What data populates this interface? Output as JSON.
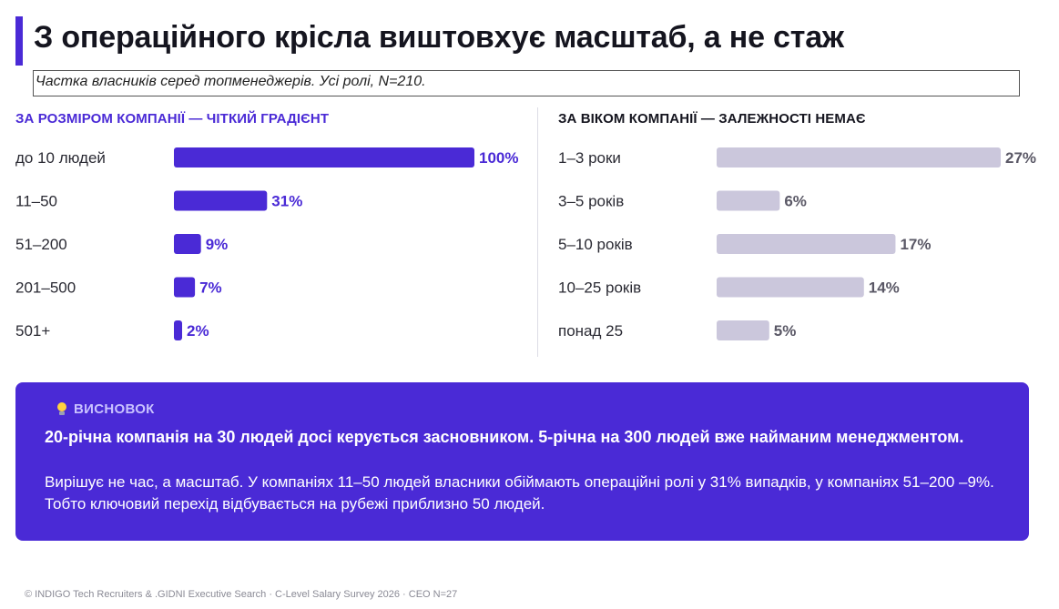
{
  "title": "З операційного крісла виштовхує масштаб, а не стаж",
  "subtitle": "Частка власників серед топменеджерів. Усі ролі, N=210.",
  "colors": {
    "accent": "#4a2ad6",
    "muted_bar": "#cbc7dc",
    "muted_value": "#5a5866"
  },
  "chart_data": [
    {
      "type": "bar",
      "orientation": "horizontal",
      "title": "ЗА РОЗМІРОМ КОМПАНІЇ — ЧІТКИЙ ГРАДІЄНТ",
      "categories": [
        "до 10 людей",
        "11–50",
        "51–200",
        "201–500",
        "501+"
      ],
      "values": [
        100,
        31,
        9,
        7,
        2
      ],
      "value_labels": [
        "100%",
        "31%",
        "9%",
        "7%",
        "2%"
      ],
      "xlim": [
        0,
        100
      ],
      "color": "#4a2ad6"
    },
    {
      "type": "bar",
      "orientation": "horizontal",
      "title": "ЗА ВІКОМ КОМПАНІЇ — ЗАЛЕЖНОСТІ НЕМАЄ",
      "categories": [
        "1–3 роки",
        "3–5 років",
        "5–10 років",
        "10–25 років",
        "понад 25"
      ],
      "values": [
        27,
        6,
        17,
        14,
        5
      ],
      "value_labels": [
        "27%",
        "6%",
        "17%",
        "14%",
        "5%"
      ],
      "xlim": [
        0,
        27
      ],
      "color": "#cbc7dc"
    }
  ],
  "conclusion": {
    "heading": "ВИСНОВОК",
    "icon": "lightbulb-icon",
    "bold": "20-річна компанія на 30 людей досі керується засновником. 5-річна на 300 людей  вже найманим менеджментом.",
    "text": "Вирішує не час, а масштаб. У компаніях 11–50 людей власники обіймають операційні ролі у 31% випадків, у компаніях 51–200 –9%. Тобто ключовий перехід відбувається на рубежі приблизно 50 людей."
  },
  "footer": "© INDIGO Tech Recruiters & .GIDNI Executive Search · C-Level Salary Survey 2026 · CEO N=27"
}
